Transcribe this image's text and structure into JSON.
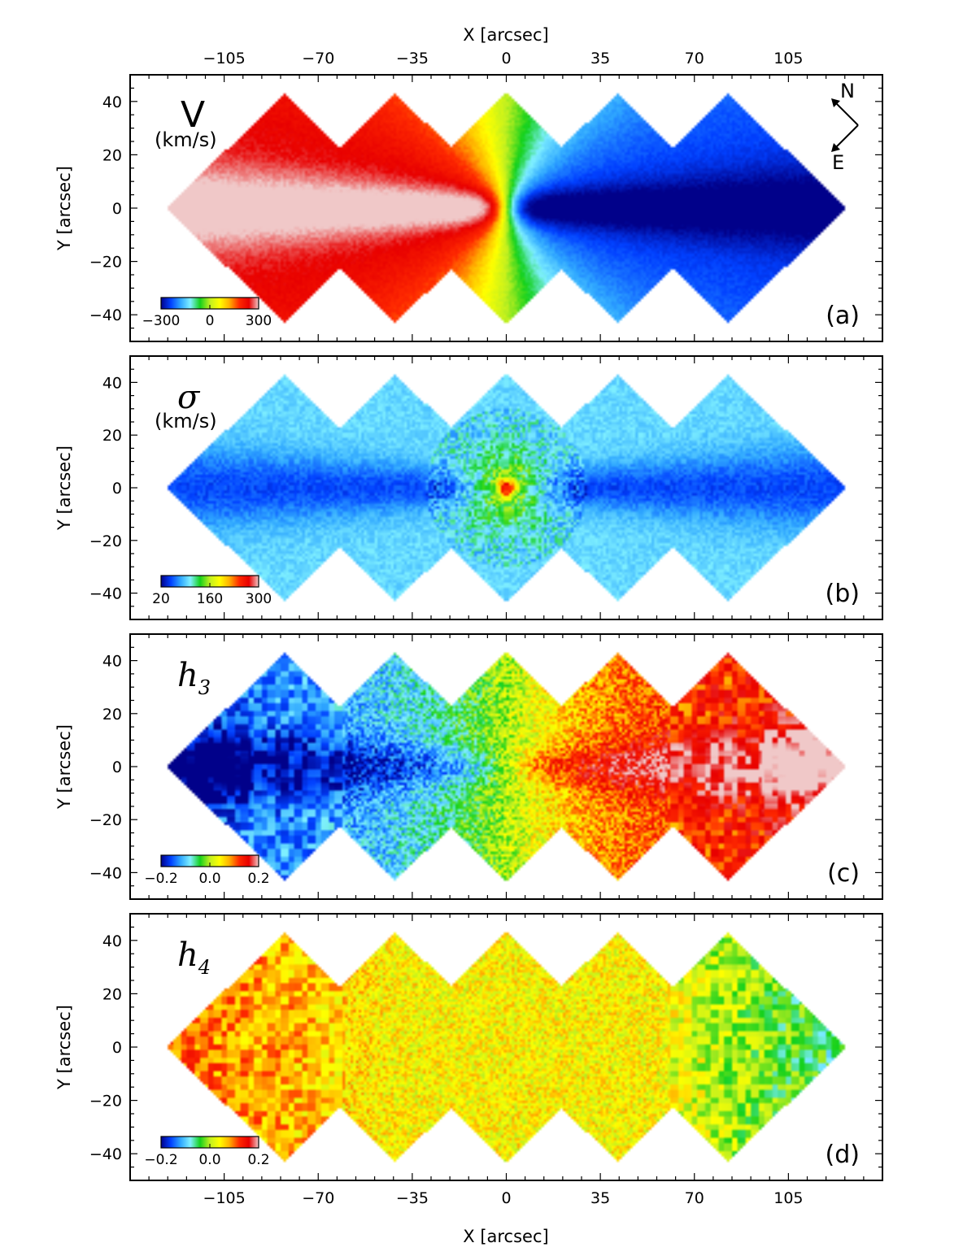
{
  "chart_data": [
    {
      "type": "heatmap",
      "panel": "(a)",
      "title": "V",
      "title_style": "roman",
      "units": "(km/s)",
      "xlabel": "X [arcsec]",
      "ylabel": "Y [arcsec]",
      "xlim": [
        -140,
        140
      ],
      "ylim": [
        -50,
        50
      ],
      "xticks": [
        -105,
        -70,
        -35,
        0,
        35,
        70,
        105
      ],
      "yticks": [
        -40,
        -20,
        0,
        20,
        40
      ],
      "top_axis_label": "X [arcsec]",
      "colorbar": {
        "ticks": [
          "−300",
          "0",
          "300"
        ],
        "range": [
          -300,
          300
        ],
        "cmap": "sauron"
      },
      "field_pattern": "rotation",
      "compass": {
        "north": "N",
        "east": "E"
      }
    },
    {
      "type": "heatmap",
      "panel": "(b)",
      "title": "σ",
      "title_style": "italic",
      "units": "(km/s)",
      "ylabel": "Y [arcsec]",
      "xlim": [
        -140,
        140
      ],
      "ylim": [
        -50,
        50
      ],
      "xticks": [
        -105,
        -70,
        -35,
        0,
        35,
        70,
        105
      ],
      "yticks": [
        -40,
        -20,
        0,
        20,
        40
      ],
      "colorbar": {
        "ticks": [
          "20",
          "160",
          "300"
        ],
        "range": [
          20,
          300
        ],
        "cmap": "sauron"
      },
      "field_pattern": "dispersion"
    },
    {
      "type": "heatmap",
      "panel": "(c)",
      "title": "h",
      "title_sub": "3",
      "title_style": "italic",
      "ylabel": "Y [arcsec]",
      "xlim": [
        -140,
        140
      ],
      "ylim": [
        -50,
        50
      ],
      "xticks": [
        -105,
        -70,
        -35,
        0,
        35,
        70,
        105
      ],
      "yticks": [
        -40,
        -20,
        0,
        20,
        40
      ],
      "colorbar": {
        "ticks": [
          "−0.2",
          "0.0",
          "0.2"
        ],
        "range": [
          -0.2,
          0.2
        ],
        "cmap": "sauron"
      },
      "field_pattern": "h3"
    },
    {
      "type": "heatmap",
      "panel": "(d)",
      "title": "h",
      "title_sub": "4",
      "title_style": "italic",
      "xlabel": "X [arcsec]",
      "ylabel": "Y [arcsec]",
      "xlim": [
        -140,
        140
      ],
      "ylim": [
        -50,
        50
      ],
      "xticks": [
        -105,
        -70,
        -35,
        0,
        35,
        70,
        105
      ],
      "yticks": [
        -40,
        -20,
        0,
        20,
        40
      ],
      "colorbar": {
        "ticks": [
          "−0.2",
          "0.0",
          "0.2"
        ],
        "range": [
          -0.2,
          0.2
        ],
        "cmap": "sauron"
      },
      "field_pattern": "h4"
    }
  ],
  "footprint": {
    "description_units": "arcsec",
    "diamonds_center_x": [
      -82.5,
      -41.25,
      0,
      41.25,
      82.5
    ],
    "half_width": 44,
    "half_height": 43
  },
  "colors": {
    "cmap_stops": [
      "#01018a",
      "#0140ff",
      "#2fa7ff",
      "#7ff0ff",
      "#14d11c",
      "#c0f020",
      "#ffff00",
      "#ffb000",
      "#ff2a00",
      "#e80000",
      "#f0c8c8"
    ],
    "axis": "#000000",
    "background": "#ffffff"
  }
}
